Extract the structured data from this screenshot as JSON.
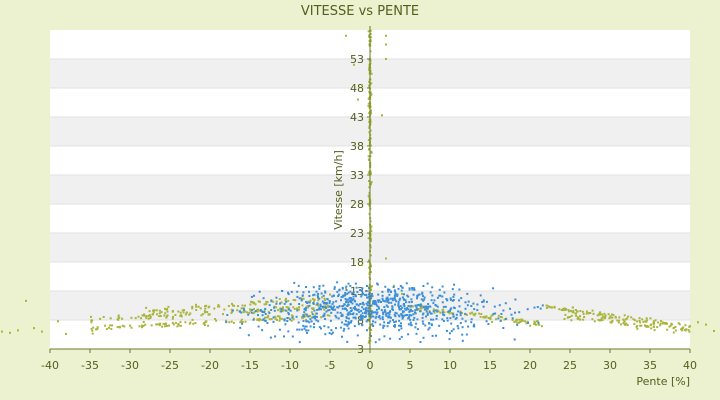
{
  "chart_data": {
    "type": "scatter",
    "title": "VITESSE vs PENTE",
    "xlabel": "Pente [%]",
    "ylabel": "Vitesse [km/h]",
    "xlim": [
      -40,
      40
    ],
    "ylim": [
      3,
      58
    ],
    "xticks": [
      -40,
      -35,
      -30,
      -25,
      -20,
      -15,
      -10,
      -5,
      0,
      5,
      10,
      15,
      20,
      25,
      30,
      35,
      40
    ],
    "yticks": [
      3,
      8,
      13,
      18,
      23,
      28,
      33,
      38,
      43,
      48,
      53
    ],
    "grid": "horizontal bands",
    "colors": {
      "background": "#ecf1cf",
      "band_white": "#ffffff",
      "band_grey": "#f0f0f0",
      "axis": "#6b7a2a",
      "series_blue": "#3b8fd9",
      "series_olive": "#a9b53c"
    },
    "series": [
      {
        "values_note": "",
        "color_key": "series_blue",
        "clusters": [
          {
            "cx": -2,
            "cy": 10.5,
            "sx": 4.5,
            "sy": 2.2,
            "n": 320
          },
          {
            "cx": 3,
            "cy": 10,
            "sx": 5,
            "sy": 2.2,
            "n": 260
          },
          {
            "cx": -10,
            "cy": 9,
            "sx": 6,
            "sy": 1.8,
            "n": 140
          },
          {
            "cx": 11,
            "cy": 8.8,
            "sx": 6,
            "sy": 1.8,
            "n": 120
          }
        ]
      },
      {
        "values_note": "",
        "color_key": "series_olive",
        "bands": [
          {
            "x0": -35,
            "x1": -5,
            "y0": 8.0,
            "y1": 10.4,
            "n": 120
          },
          {
            "x0": -35,
            "x1": -5,
            "y0": 6.5,
            "y1": 8.8,
            "n": 120
          },
          {
            "x0": -28,
            "x1": -5,
            "y0": 9.4,
            "y1": 11.8,
            "n": 80
          },
          {
            "x0": 5,
            "x1": 22,
            "y0": 10.2,
            "y1": 7.2,
            "n": 90
          },
          {
            "x0": 22,
            "x1": 40,
            "y0": 10.2,
            "y1": 6.8,
            "n": 110
          },
          {
            "x0": 24,
            "x1": 40,
            "y0": 8.6,
            "y1": 6.2,
            "n": 80
          }
        ],
        "vertical_line": {
          "x": 0,
          "y0": 4,
          "y1": 58,
          "n": 220
        },
        "outliers": [
          [
            -43,
            11.3
          ],
          [
            -44,
            6.2
          ],
          [
            -42,
            6.6
          ],
          [
            -41,
            6.0
          ],
          [
            -39,
            7.8
          ],
          [
            -38,
            5.6
          ],
          [
            -45,
            5.8
          ],
          [
            -46,
            6.0
          ],
          [
            41,
            7.6
          ],
          [
            42,
            7.2
          ],
          [
            43,
            6.1
          ],
          [
            44,
            7.4
          ],
          [
            2,
            53
          ],
          [
            2,
            55.5
          ],
          [
            2,
            57
          ],
          [
            1.5,
            43.3
          ],
          [
            -2,
            52
          ],
          [
            -3,
            57
          ],
          [
            -1.5,
            46
          ],
          [
            -1,
            48.5
          ],
          [
            2,
            18.6
          ],
          [
            -1,
            17.5
          ],
          [
            -3,
            13.5
          ],
          [
            -5,
            12.4
          ],
          [
            3,
            13.9
          ],
          [
            4,
            12.5
          ],
          [
            -7,
            11.2
          ]
        ]
      }
    ]
  }
}
